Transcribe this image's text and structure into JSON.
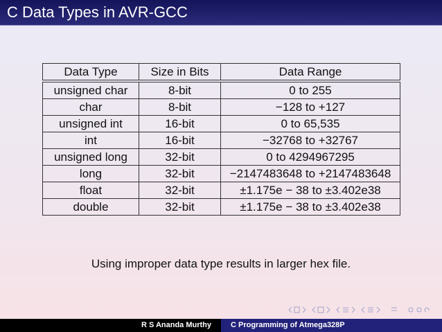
{
  "header": {
    "title": "C Data Types in AVR-GCC"
  },
  "table": {
    "columns": [
      "Data Type",
      "Size in Bits",
      "Data Range"
    ],
    "rows": [
      [
        "unsigned char",
        "8-bit",
        "0 to 255"
      ],
      [
        "char",
        "8-bit",
        "−128 to +127"
      ],
      [
        "unsigned int",
        "16-bit",
        "0 to 65,535"
      ],
      [
        "int",
        "16-bit",
        "−32768 to +32767"
      ],
      [
        "unsigned long",
        "32-bit",
        "0 to 4294967295"
      ],
      [
        "long",
        "32-bit",
        "−2147483648 to +2147483648"
      ],
      [
        "float",
        "32-bit",
        "±1.175e − 38 to ±3.402e38"
      ],
      [
        "double",
        "32-bit",
        "±1.175e − 38 to ±3.402e38"
      ]
    ]
  },
  "note": "Using improper data type results in larger hex file.",
  "footer": {
    "author": "R S Ananda Murthy",
    "title": "C Programming of Atmega328P"
  }
}
